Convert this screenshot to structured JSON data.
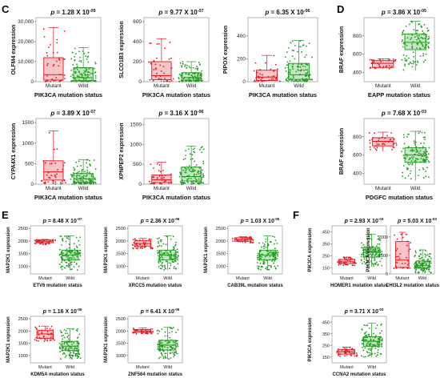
{
  "panels": [
    {
      "letter": "C"
    },
    {
      "letter": "D"
    },
    {
      "letter": "E"
    },
    {
      "letter": "F"
    }
  ],
  "colors": {
    "mutant": "#e8141c",
    "wild": "#1f9a1f",
    "mutant_fill": "#f6c5c8",
    "wild_fill": "#c4e6c0"
  },
  "chart_data": [
    {
      "type": "box",
      "panel": "C",
      "title_prefix": "p",
      "title_value": "= 1.28 X 10",
      "title_exp": "-09",
      "ylabel": "OLFM4 expression",
      "xlabel": "PIK3CA mutation status",
      "categories": [
        "Mutant",
        "Wild"
      ],
      "yticks": [
        "0",
        "10,000",
        "20,000",
        "30,000"
      ],
      "ylim": [
        0,
        32000
      ],
      "series": [
        {
          "name": "Mutant",
          "q1": 800,
          "median": 3500,
          "q3": 12000,
          "min": 0,
          "max": 27000
        },
        {
          "name": "Wild",
          "q1": 500,
          "median": 2000,
          "q3": 7000,
          "min": 0,
          "max": 17000
        }
      ]
    },
    {
      "type": "box",
      "panel": "C",
      "title_prefix": "p",
      "title_value": "= 9.77 X 10",
      "title_exp": "-07",
      "ylabel": "SLCO1B3 expression",
      "xlabel": "PIK3CA mutation status",
      "categories": [
        "Mutant",
        "Wild"
      ],
      "yticks": [
        "0",
        "200",
        "400",
        "600"
      ],
      "ylim": [
        0,
        640
      ],
      "series": [
        {
          "name": "Mutant",
          "q1": 20,
          "median": 60,
          "q3": 200,
          "min": 0,
          "max": 430
        },
        {
          "name": "Wild",
          "q1": 15,
          "median": 40,
          "q3": 90,
          "min": 0,
          "max": 200
        }
      ]
    },
    {
      "type": "box",
      "panel": "C",
      "title_prefix": "p",
      "title_value": "= 6.35 X 10",
      "title_exp": "-06",
      "ylabel": "PIPOX expression",
      "xlabel": "PIK3CA mutation status",
      "categories": [
        "Mutant",
        "Wild"
      ],
      "yticks": [
        "0",
        "200",
        "400"
      ],
      "ylim": [
        0,
        560
      ],
      "series": [
        {
          "name": "Mutant",
          "q1": 10,
          "median": 40,
          "q3": 100,
          "min": 0,
          "max": 230
        },
        {
          "name": "Wild",
          "q1": 20,
          "median": 60,
          "q3": 160,
          "min": 0,
          "max": 360
        }
      ]
    },
    {
      "type": "box",
      "panel": "D",
      "title_prefix": "p",
      "title_value": "= 3.86 X 10",
      "title_exp": "-05",
      "ylabel": "BRAF expression",
      "xlabel": "EAPP mutation status",
      "categories": [
        "Mutant",
        "Wild"
      ],
      "yticks": [
        "400",
        "600",
        "800"
      ],
      "ylim": [
        300,
        1000
      ],
      "series": [
        {
          "name": "Mutant",
          "q1": 455,
          "median": 500,
          "q3": 530,
          "min": 440,
          "max": 550
        },
        {
          "name": "Wild",
          "q1": 650,
          "median": 730,
          "q3": 820,
          "min": 420,
          "max": 960
        }
      ]
    },
    {
      "type": "box",
      "panel": "C",
      "title_prefix": "p",
      "title_value": "= 3.89 X 10",
      "title_exp": "-07",
      "ylabel": "CYPA4X1 expression",
      "xlabel": "PIK3CA mutation status",
      "categories": [
        "Mutant",
        "Wild"
      ],
      "yticks": [
        "0",
        "500",
        "1000",
        "1500"
      ],
      "ylim": [
        0,
        1600
      ],
      "series": [
        {
          "name": "Mutant",
          "q1": 100,
          "median": 300,
          "q3": 570,
          "min": 0,
          "max": 1300
        },
        {
          "name": "Wild",
          "q1": 50,
          "median": 130,
          "q3": 260,
          "min": 0,
          "max": 600
        }
      ]
    },
    {
      "type": "box",
      "panel": "C",
      "title_prefix": "p",
      "title_value": "= 3.16 X 10",
      "title_exp": "-06",
      "ylabel": "XPNPEP2 expression",
      "xlabel": "PIK3CA mutation status",
      "categories": [
        "Mutant",
        "Wild"
      ],
      "yticks": [
        "0",
        "500",
        "1000",
        "1500"
      ],
      "ylim": [
        0,
        1650
      ],
      "series": [
        {
          "name": "Mutant",
          "q1": 40,
          "median": 110,
          "q3": 230,
          "min": 0,
          "max": 550
        },
        {
          "name": "Wild",
          "q1": 80,
          "median": 190,
          "q3": 430,
          "min": 0,
          "max": 960
        }
      ]
    },
    {
      "type": "box",
      "panel": "D",
      "title_prefix": "p",
      "title_value": "= 7.68 X 10",
      "title_exp": "-03",
      "ylabel": "BRAF expression",
      "xlabel": "PDGFC mutation status",
      "categories": [
        "Mutant",
        "Wild"
      ],
      "yticks": [
        "400",
        "600",
        "800"
      ],
      "ylim": [
        280,
        1000
      ],
      "series": [
        {
          "name": "Mutant",
          "q1": 700,
          "median": 750,
          "q3": 790,
          "min": 640,
          "max": 850
        },
        {
          "name": "Wild",
          "q1": 520,
          "median": 600,
          "q3": 680,
          "min": 320,
          "max": 860
        }
      ]
    },
    {
      "type": "box",
      "panel": "E",
      "title_prefix": "p",
      "title_value": "= 8.48 X 10",
      "title_exp": "-07",
      "ylabel": "MAP2K1 expression",
      "xlabel": "ETV6 mutation status",
      "categories": [
        "Mutant",
        "Wild"
      ],
      "yticks": [
        "1000",
        "1500",
        "2000",
        "2500"
      ],
      "ylim": [
        700,
        2600
      ],
      "series": [
        {
          "name": "Mutant",
          "q1": 1930,
          "median": 1990,
          "q3": 2040,
          "min": 1860,
          "max": 2060
        },
        {
          "name": "Wild",
          "q1": 1250,
          "median": 1440,
          "q3": 1640,
          "min": 850,
          "max": 2200
        }
      ]
    },
    {
      "type": "box",
      "panel": "E",
      "title_prefix": "p",
      "title_value": "= 2.36 X 10",
      "title_exp": "-06",
      "ylabel": "MAP2K1 expression",
      "xlabel": "XRCC5 mutation status",
      "categories": [
        "Mutant",
        "Wild"
      ],
      "yticks": [
        "1000",
        "1500",
        "2000",
        "2500"
      ],
      "ylim": [
        700,
        2600
      ],
      "series": [
        {
          "name": "Mutant",
          "q1": 1800,
          "median": 1900,
          "q3": 2010,
          "min": 1700,
          "max": 2100
        },
        {
          "name": "Wild",
          "q1": 1250,
          "median": 1440,
          "q3": 1640,
          "min": 850,
          "max": 2200
        }
      ]
    },
    {
      "type": "box",
      "panel": "E",
      "title_prefix": "p",
      "title_value": "= 1.03 X 10",
      "title_exp": "-05",
      "ylabel": "MAP2K1 expression",
      "xlabel": "CAB39L mutation status",
      "categories": [
        "Mutant",
        "Wild"
      ],
      "yticks": [
        "1000",
        "1500",
        "2000",
        "2500"
      ],
      "ylim": [
        700,
        2600
      ],
      "series": [
        {
          "name": "Mutant",
          "q1": 1990,
          "median": 2060,
          "q3": 2130,
          "min": 1920,
          "max": 2170
        },
        {
          "name": "Wild",
          "q1": 1250,
          "median": 1440,
          "q3": 1640,
          "min": 850,
          "max": 2200
        }
      ]
    },
    {
      "type": "box",
      "panel": "F",
      "title_prefix": "p",
      "title_value": "= 2.93 X 10",
      "title_exp": "-03",
      "ylabel": "PIK3CA expression",
      "xlabel": "HOMER1 mutation status",
      "categories": [
        "Mutant",
        "Wild"
      ],
      "yticks": [
        "150",
        "250",
        "350",
        "450"
      ],
      "ylim": [
        100,
        500
      ],
      "series": [
        {
          "name": "Mutant",
          "q1": 185,
          "median": 200,
          "q3": 220,
          "min": 170,
          "max": 240
        },
        {
          "name": "Wild",
          "q1": 240,
          "median": 280,
          "q3": 320,
          "min": 160,
          "max": 430
        }
      ]
    },
    {
      "type": "box",
      "panel": "F",
      "title_prefix": "p",
      "title_value": "= 5.03 X 10",
      "title_exp": "-03",
      "ylabel": "PIK3CA expression",
      "xlabel": "CHI3L2 mutation status",
      "categories": [
        "Mutant",
        "Wild"
      ],
      "yticks": [
        "0",
        "1000",
        "2000"
      ],
      "ylim": [
        0,
        2600
      ],
      "series": [
        {
          "name": "Mutant",
          "q1": 350,
          "median": 750,
          "q3": 1750,
          "min": 300,
          "max": 2250
        },
        {
          "name": "Wild",
          "q1": 300,
          "median": 450,
          "q3": 700,
          "min": 50,
          "max": 1300
        }
      ]
    },
    {
      "type": "box",
      "panel": "E",
      "title_prefix": "p",
      "title_value": "= 1.16 X 10",
      "title_exp": "-06",
      "ylabel": "MAP2K1 expression",
      "xlabel": "KDM5A mutation status",
      "categories": [
        "Mutant",
        "Wild"
      ],
      "yticks": [
        "1000",
        "1500",
        "2000",
        "2500"
      ],
      "ylim": [
        700,
        2600
      ],
      "series": [
        {
          "name": "Mutant",
          "q1": 1700,
          "median": 1880,
          "q3": 2020,
          "min": 1580,
          "max": 2200
        },
        {
          "name": "Wild",
          "q1": 1200,
          "median": 1380,
          "q3": 1580,
          "min": 850,
          "max": 2100
        }
      ]
    },
    {
      "type": "box",
      "panel": "E",
      "title_prefix": "p",
      "title_value": "= 6.41 X 10",
      "title_exp": "-06",
      "ylabel": "MAP2K1 expression",
      "xlabel": "ZNF564 mutation status",
      "categories": [
        "Mutant",
        "Wild"
      ],
      "yticks": [
        "1000",
        "1500",
        "2000",
        "2500"
      ],
      "ylim": [
        700,
        2600
      ],
      "series": [
        {
          "name": "Mutant",
          "q1": 1940,
          "median": 2000,
          "q3": 2060,
          "min": 1880,
          "max": 2120
        },
        {
          "name": "Wild",
          "q1": 1220,
          "median": 1420,
          "q3": 1620,
          "min": 850,
          "max": 2150
        }
      ]
    },
    {
      "type": "box",
      "panel": "F",
      "title_prefix": "p",
      "title_value": "= 3.71 X 10",
      "title_exp": "-03",
      "ylabel": "PIK3CA expression",
      "xlabel": "CCNA2 mutation status",
      "categories": [
        "Mutant",
        "Wild"
      ],
      "yticks": [
        "150",
        "250",
        "350",
        "450"
      ],
      "ylim": [
        100,
        500
      ],
      "series": [
        {
          "name": "Mutant",
          "q1": 175,
          "median": 195,
          "q3": 215,
          "min": 155,
          "max": 235
        },
        {
          "name": "Wild",
          "q1": 240,
          "median": 285,
          "q3": 325,
          "min": 150,
          "max": 440
        }
      ]
    }
  ]
}
